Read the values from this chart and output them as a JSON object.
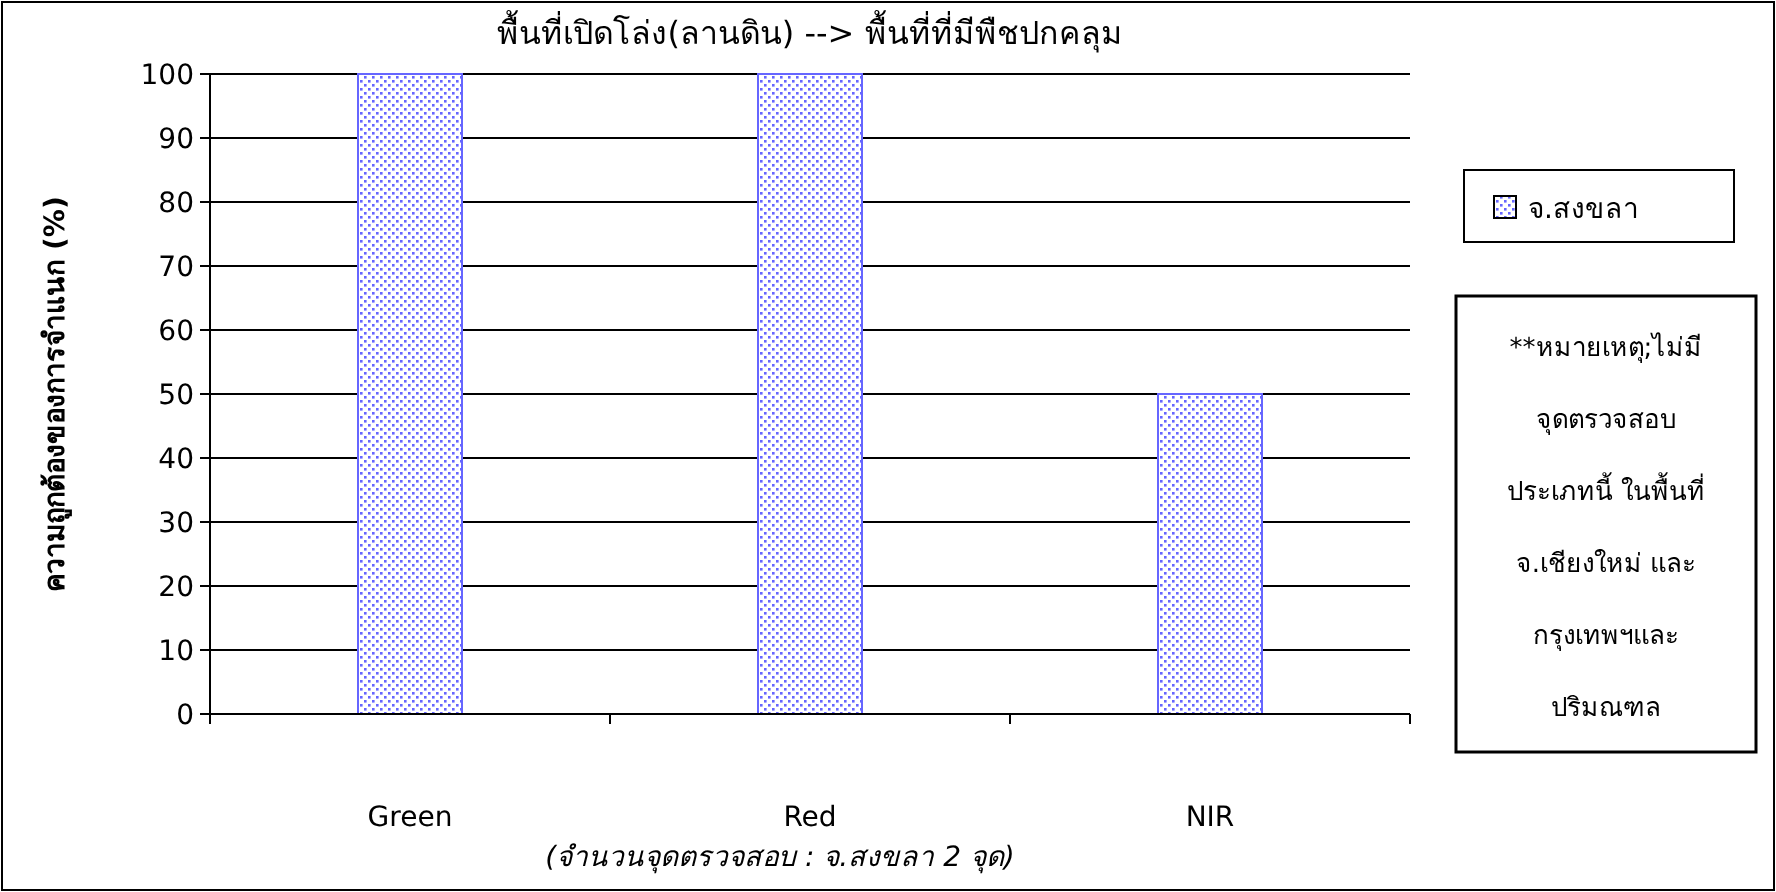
{
  "chart_data": {
    "type": "bar",
    "title": "พื้นที่เปิดโล่ง(ลานดิน) --> พื้นที่ที่มีพืชปกคลุม",
    "ylabel": "ความถูกต้องของการจำแนก (%)",
    "xlabel": "(จำนวนจุดตรวจสอบ :  จ.สงขลา 2 จุด)",
    "categories": [
      "Green",
      "Red",
      "NIR"
    ],
    "series": [
      {
        "name": "จ.สงขลา",
        "color": "#6666ff",
        "values": [
          100,
          100,
          50
        ]
      }
    ],
    "ylim": [
      0,
      100
    ],
    "yticks": [
      0,
      10,
      20,
      30,
      40,
      50,
      60,
      70,
      80,
      90,
      100
    ],
    "grid": "y",
    "legend": "right",
    "annotations": [
      "**หมายเหตุ;ไม่มี\nจุดตรวจสอบ\nประเภทนี้ ในพื้นที่\nจ.เชียงใหม่ และ\nกรุงเทพฯและ\nปริมณฑล"
    ]
  }
}
